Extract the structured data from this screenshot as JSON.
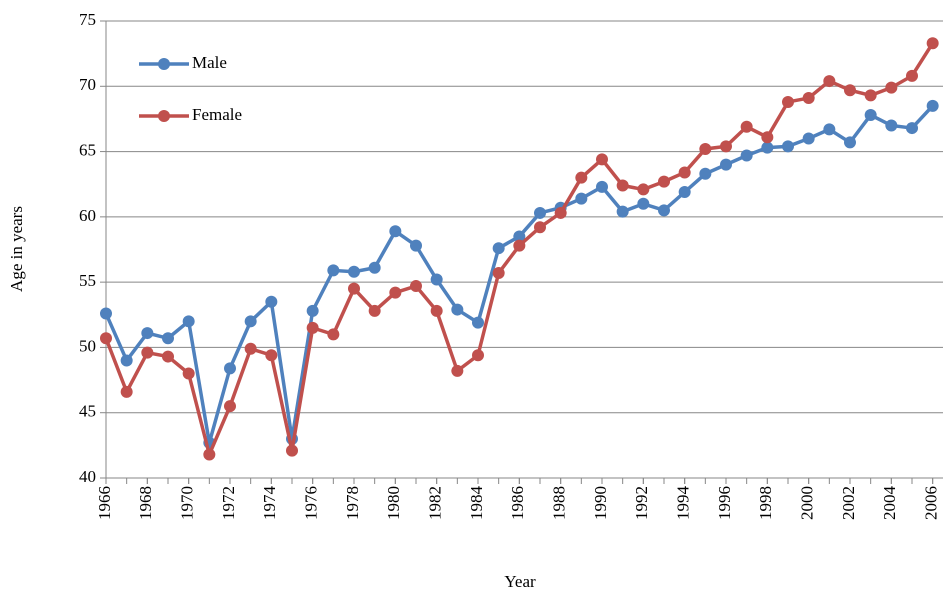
{
  "chart_data": {
    "type": "line",
    "x_label": "Year",
    "y_label": "Age in years",
    "x": [
      1966,
      1967,
      1968,
      1969,
      1970,
      1971,
      1972,
      1973,
      1974,
      1975,
      1976,
      1977,
      1978,
      1979,
      1980,
      1981,
      1982,
      1983,
      1984,
      1985,
      1986,
      1987,
      1988,
      1989,
      1990,
      1991,
      1992,
      1993,
      1994,
      1995,
      1996,
      1997,
      1998,
      1999,
      2000,
      2001,
      2002,
      2003,
      2004,
      2005,
      2006
    ],
    "series": [
      {
        "name": "Male",
        "color": "#4f81bd",
        "values": [
          52.6,
          49.0,
          51.1,
          50.7,
          52.0,
          42.7,
          48.4,
          52.0,
          53.5,
          43.0,
          52.8,
          55.9,
          55.8,
          56.1,
          58.9,
          57.8,
          55.2,
          52.9,
          51.9,
          57.6,
          58.5,
          60.3,
          60.7,
          61.4,
          62.3,
          60.4,
          61.0,
          60.5,
          61.9,
          63.3,
          64.0,
          64.7,
          65.3,
          65.4,
          66.0,
          66.7,
          65.7,
          67.8,
          67.0,
          66.8,
          68.5
        ]
      },
      {
        "name": "Female",
        "color": "#c0504d",
        "values": [
          50.7,
          46.6,
          49.6,
          49.3,
          48.0,
          41.8,
          45.5,
          49.9,
          49.4,
          42.1,
          51.5,
          51.0,
          54.5,
          52.8,
          54.2,
          54.7,
          52.8,
          48.2,
          49.4,
          55.7,
          57.8,
          59.2,
          60.3,
          63.0,
          64.4,
          62.4,
          62.1,
          62.7,
          63.4,
          65.2,
          65.4,
          66.9,
          66.1,
          68.8,
          69.1,
          70.4,
          69.7,
          69.3,
          69.9,
          70.8,
          73.3
        ]
      }
    ],
    "xlim": [
      1966,
      2006.5
    ],
    "ylim": [
      40,
      75
    ],
    "xticks": [
      1966,
      1968,
      1970,
      1972,
      1974,
      1976,
      1978,
      1980,
      1982,
      1984,
      1986,
      1988,
      1990,
      1992,
      1994,
      1996,
      1998,
      2000,
      2002,
      2004,
      2006
    ],
    "yticks": [
      40,
      45,
      50,
      55,
      60,
      65,
      70,
      75
    ],
    "grid": true,
    "legend": "upper left"
  }
}
